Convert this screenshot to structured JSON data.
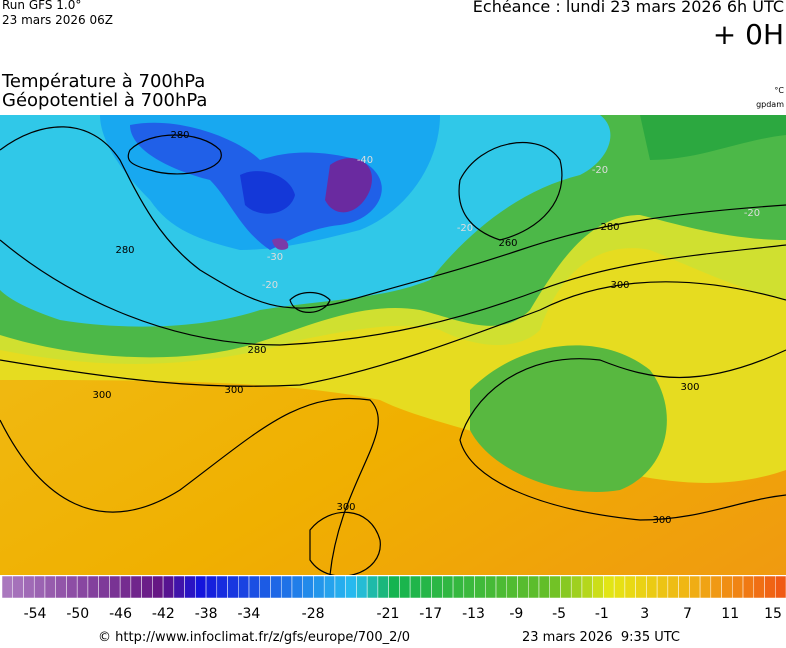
{
  "header": {
    "run": "Run GFS 1.0°",
    "run_date": "23 mars 2026 06Z",
    "forecast": "Echéance : lundi 23 mars 2026 6h UTC",
    "lead": "+ 0H",
    "title1": "Température à 700hPa",
    "title2": "Géopotentiel à 700hPa",
    "unit1": "°C",
    "unit2": "gpdam"
  },
  "map": {
    "contour_labels": [
      "280",
      "280",
      "260",
      "280",
      "280",
      "300",
      "300",
      "300",
      "300",
      "300",
      "300",
      "-40",
      "-30",
      "-20",
      "-20",
      "-20",
      "-20"
    ]
  },
  "colorbar": {
    "ticks": [
      -54,
      -50,
      -46,
      -42,
      -38,
      -34,
      -28,
      -21,
      -17,
      -13,
      -9,
      -5,
      -1,
      3,
      7,
      11,
      15
    ]
  },
  "footer": {
    "source": "© http://www.infoclimat.fr/z/gfs/europe/700_2/0",
    "generated": "23 mars 2026  9:35 UTC"
  }
}
